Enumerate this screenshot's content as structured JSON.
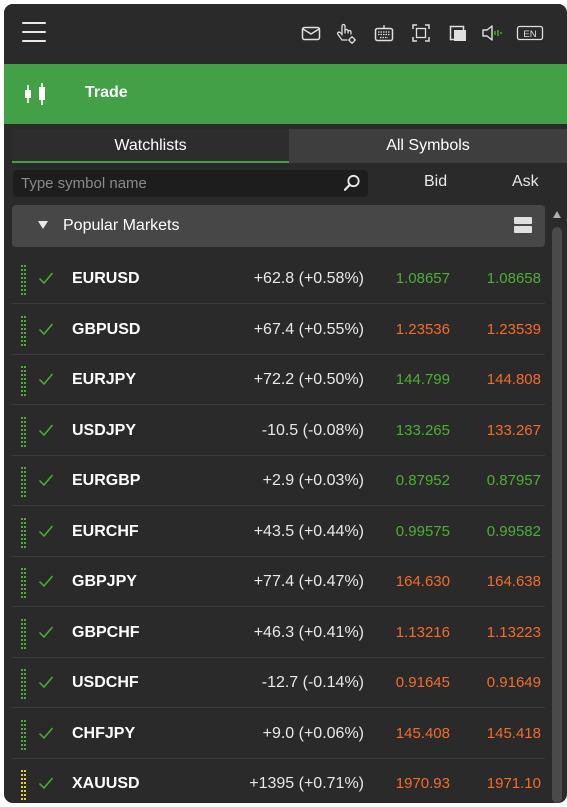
{
  "colors": {
    "accent": "#43a047",
    "up": "#4caf35",
    "down": "#f36c2b",
    "background": "#2a2a2a"
  },
  "toolbar": {
    "icons": [
      "menu-icon",
      "mail-icon",
      "touch-settings-icon",
      "keyboard-icon",
      "fullscreen-icon",
      "window-icon",
      "sound-icon",
      "language-icon"
    ],
    "language": "EN"
  },
  "header": {
    "title": "Trade"
  },
  "tabs": [
    {
      "label": "Watchlists",
      "active": true
    },
    {
      "label": "All Symbols",
      "active": false
    }
  ],
  "search": {
    "placeholder": "Type symbol name",
    "value": ""
  },
  "columns": {
    "bid": "Bid",
    "ask": "Ask"
  },
  "group": {
    "label": "Popular Markets"
  },
  "rows": [
    {
      "symbol": "EURUSD",
      "change": "+62.8 (+0.58%)",
      "bid": "1.08657",
      "ask": "1.08658",
      "bid_dir": "up",
      "ask_dir": "up"
    },
    {
      "symbol": "GBPUSD",
      "change": "+67.4 (+0.55%)",
      "bid": "1.23536",
      "ask": "1.23539",
      "bid_dir": "down",
      "ask_dir": "down"
    },
    {
      "symbol": "EURJPY",
      "change": "+72.2 (+0.50%)",
      "bid": "144.799",
      "ask": "144.808",
      "bid_dir": "up",
      "ask_dir": "down"
    },
    {
      "symbol": "USDJPY",
      "change": "-10.5 (-0.08%)",
      "bid": "133.265",
      "ask": "133.267",
      "bid_dir": "up",
      "ask_dir": "down"
    },
    {
      "symbol": "EURGBP",
      "change": "+2.9 (+0.03%)",
      "bid": "0.87952",
      "ask": "0.87957",
      "bid_dir": "up",
      "ask_dir": "up"
    },
    {
      "symbol": "EURCHF",
      "change": "+43.5 (+0.44%)",
      "bid": "0.99575",
      "ask": "0.99582",
      "bid_dir": "up",
      "ask_dir": "up"
    },
    {
      "symbol": "GBPJPY",
      "change": "+77.4 (+0.47%)",
      "bid": "164.630",
      "ask": "164.638",
      "bid_dir": "down",
      "ask_dir": "down"
    },
    {
      "symbol": "GBPCHF",
      "change": "+46.3 (+0.41%)",
      "bid": "1.13216",
      "ask": "1.13223",
      "bid_dir": "down",
      "ask_dir": "down"
    },
    {
      "symbol": "USDCHF",
      "change": "-12.7 (-0.14%)",
      "bid": "0.91645",
      "ask": "0.91649",
      "bid_dir": "down",
      "ask_dir": "down"
    },
    {
      "symbol": "CHFJPY",
      "change": "+9.0 (+0.06%)",
      "bid": "145.408",
      "ask": "145.418",
      "bid_dir": "down",
      "ask_dir": "down"
    },
    {
      "symbol": "XAUUSD",
      "change": "+1395 (+0.71%)",
      "bid": "1970.93",
      "ask": "1971.10",
      "bid_dir": "down",
      "ask_dir": "down"
    }
  ]
}
